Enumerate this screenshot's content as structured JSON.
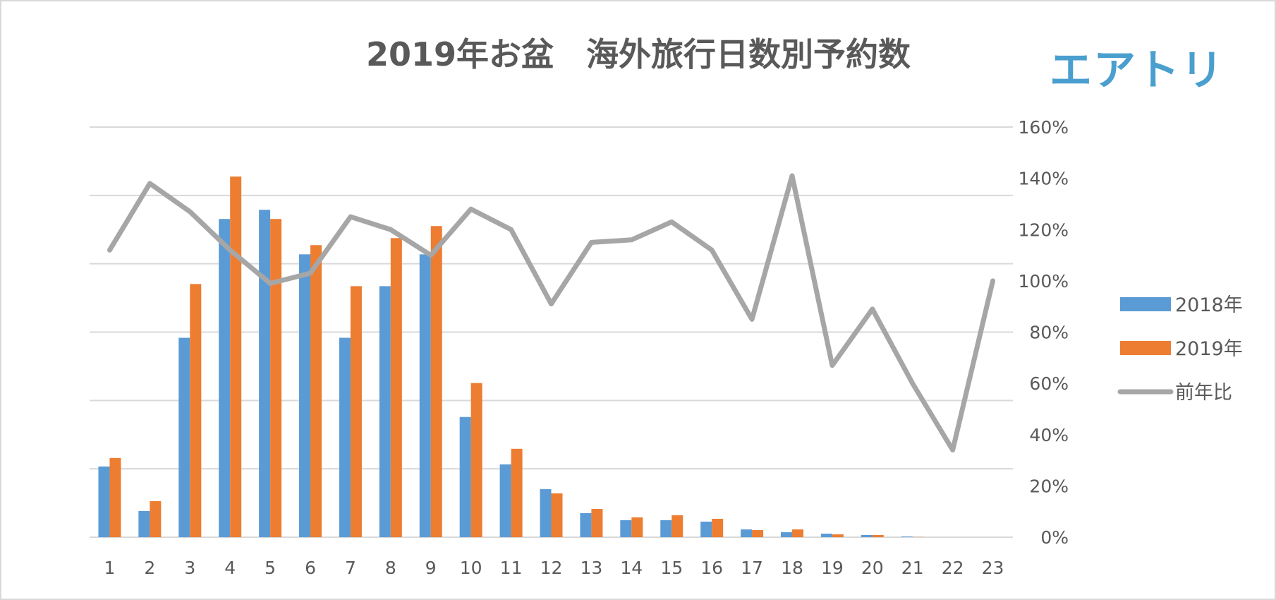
{
  "logo": {
    "text": "エアトリ"
  },
  "chart_data": {
    "type": "bar",
    "title": "2019年お盆　海外旅行日数別予約数",
    "categories": [
      "1",
      "2",
      "3",
      "4",
      "5",
      "6",
      "7",
      "8",
      "9",
      "10",
      "11",
      "12",
      "13",
      "14",
      "15",
      "16",
      "17",
      "18",
      "19",
      "20",
      "21",
      "22",
      "23"
    ],
    "series": [
      {
        "name": "2018年",
        "kind": "bar",
        "color": "#5b9bd5",
        "values": [
          100,
          37,
          282,
          450,
          463,
          400,
          282,
          355,
          400,
          170,
          103,
          68,
          34,
          24,
          24,
          22,
          11,
          7,
          5,
          3,
          1,
          0,
          0
        ]
      },
      {
        "name": "2019年",
        "kind": "bar",
        "color": "#ed7d31",
        "values": [
          112,
          51,
          358,
          510,
          450,
          413,
          355,
          423,
          440,
          218,
          125,
          62,
          40,
          28,
          31,
          26,
          10,
          11,
          4,
          3,
          0.3,
          0,
          0
        ]
      },
      {
        "name": "前年比",
        "kind": "line",
        "axis": "right",
        "color": "#a6a6a6",
        "values": [
          112,
          138,
          127,
          112,
          99,
          103,
          125,
          120,
          110,
          128,
          120,
          91,
          115,
          116,
          123,
          112,
          85,
          141,
          67,
          89,
          60,
          34,
          100
        ]
      }
    ],
    "left_axis": {
      "min": 0,
      "max": 580,
      "gridlines": [
        0,
        96.7,
        193.3,
        290,
        386.7,
        483.3,
        580
      ],
      "labels_shown": false
    },
    "right_axis": {
      "min": 0,
      "max": 160,
      "ticks": [
        "0%",
        "20%",
        "40%",
        "60%",
        "80%",
        "100%",
        "120%",
        "140%",
        "160%"
      ]
    },
    "grid": true,
    "legend": {
      "position": "right"
    }
  }
}
